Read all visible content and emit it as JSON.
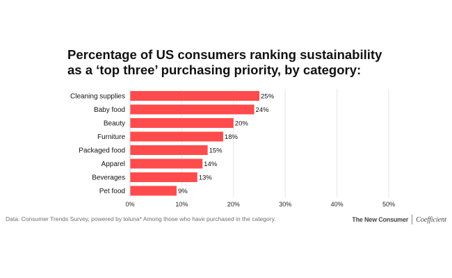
{
  "title": "Percentage of US consumers ranking sustainability as a ‘top three’ purchasing priority, by category:",
  "footer": {
    "source": "Data: Consumer Trends Survey, powered by toluna*  Among those who have purchased in the category.",
    "brand_primary": "The New Consumer",
    "brand_secondary": "Coefficient"
  },
  "chart_data": {
    "type": "bar",
    "orientation": "horizontal",
    "categories": [
      "Cleaning supplies",
      "Baby food",
      "Beauty",
      "Furniture",
      "Packaged food",
      "Apparel",
      "Beverages",
      "Pet food"
    ],
    "values": [
      25,
      24,
      20,
      18,
      15,
      14,
      13,
      9
    ],
    "value_labels": [
      "25%",
      "24%",
      "20%",
      "18%",
      "15%",
      "14%",
      "13%",
      "9%"
    ],
    "xlim": [
      0,
      50
    ],
    "xticks": [
      0,
      10,
      20,
      30,
      40,
      50
    ],
    "xtick_labels": [
      "0%",
      "10%",
      "20%",
      "30%",
      "40%",
      "50%"
    ],
    "grid": "vertical",
    "legend": "none",
    "bar_color": "#ff4b4b",
    "grid_color": "#e6e6e6"
  }
}
